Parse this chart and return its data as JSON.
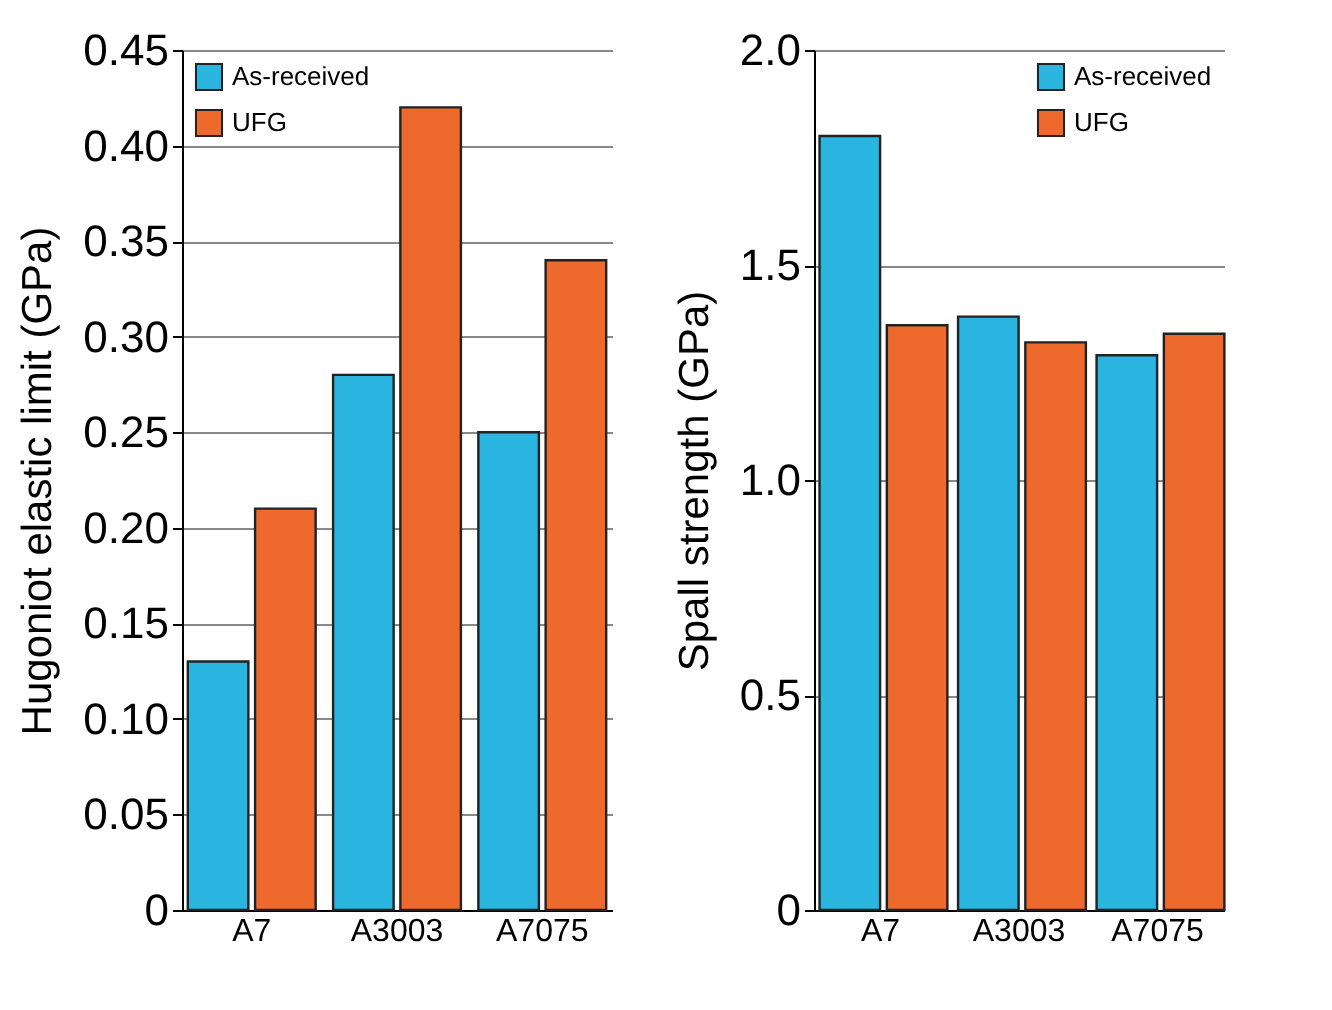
{
  "chart_data": [
    {
      "type": "bar",
      "ylabel": "Hugoniot elastic limit (GPa)",
      "categories": [
        "A7",
        "A3003",
        "A7075"
      ],
      "series": [
        {
          "name": "As-received",
          "color": "#29b5e0",
          "values": [
            0.13,
            0.28,
            0.25
          ]
        },
        {
          "name": "UFG",
          "color": "#ee6a2c",
          "values": [
            0.21,
            0.42,
            0.34
          ]
        }
      ],
      "ylim": [
        0,
        0.45
      ],
      "yticks": [
        0,
        0.05,
        {
          "value": 0.1,
          "label": "0.10"
        },
        0.15,
        {
          "value": 0.2,
          "label": "0.20"
        },
        0.25,
        {
          "value": 0.3,
          "label": "0.30"
        },
        0.35,
        {
          "value": 0.4,
          "label": "0.40"
        },
        0.45
      ],
      "grid": "y",
      "legend": "top left"
    },
    {
      "type": "bar",
      "ylabel": "Spall strength (GPa)",
      "categories": [
        "A7",
        "A3003",
        "A7075"
      ],
      "series": [
        {
          "name": "As-received",
          "color": "#29b5e0",
          "values": [
            1.8,
            1.38,
            1.29
          ]
        },
        {
          "name": "UFG",
          "color": "#ee6a2c",
          "values": [
            1.36,
            1.32,
            1.34
          ]
        }
      ],
      "ylim": [
        0,
        2.0
      ],
      "yticks": [
        0,
        {
          "value": 0.5,
          "label": "0.5"
        },
        {
          "value": 1,
          "label": "1.0"
        },
        {
          "value": 1.5,
          "label": "1.5"
        },
        {
          "value": 2,
          "label": "2.0"
        }
      ],
      "grid": "y",
      "legend": "top right"
    }
  ]
}
